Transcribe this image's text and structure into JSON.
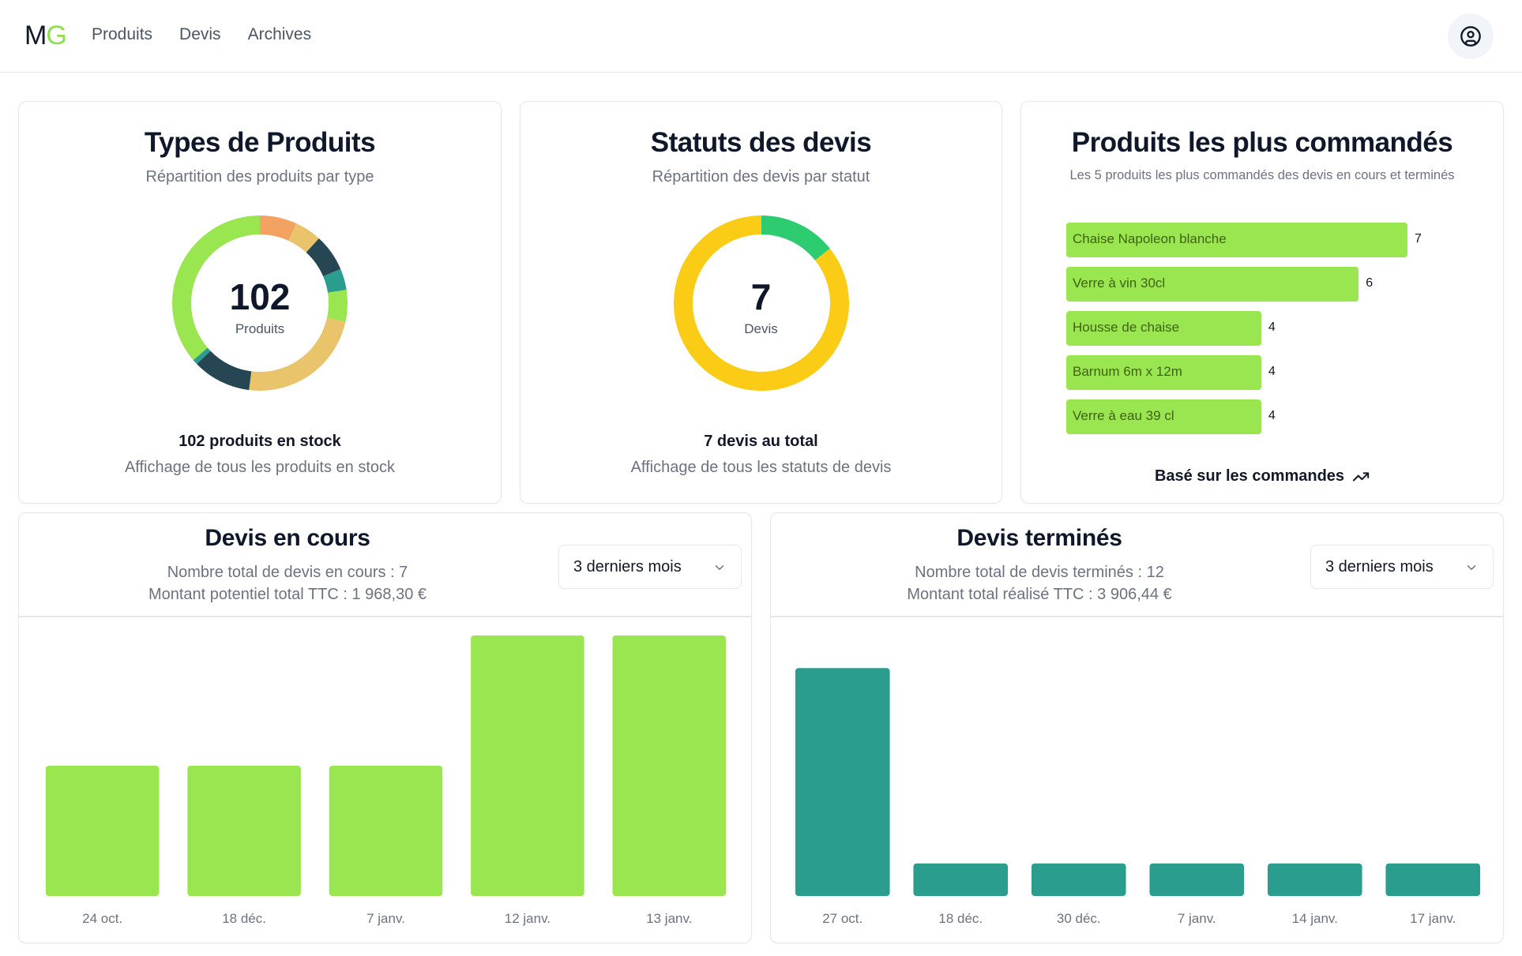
{
  "app": {
    "logo_m": "M",
    "logo_g": "G",
    "nav": [
      "Produits",
      "Devis",
      "Archives"
    ]
  },
  "colors": {
    "accent": "#9ae650",
    "teal": "#2a9d8f",
    "yellow": "#facc15",
    "green": "#2ecc71",
    "dark": "#264653",
    "sand": "#e9c46a",
    "orange": "#f4a261"
  },
  "icons": {
    "user": "user-circle-icon",
    "chevron": "chevron-down-icon",
    "trend": "trending-up-icon"
  },
  "types_produits": {
    "title": "Types de Produits",
    "subtitle": "Répartition des produits par type",
    "center_value": "102",
    "center_label": "Produits",
    "footer_main": "102 produits en stock",
    "footer_sub": "Affichage de tous les produits en stock",
    "chart_data": {
      "type": "pie",
      "total": 102,
      "slices": [
        {
          "value": 7,
          "color": "#f4a261"
        },
        {
          "value": 5,
          "color": "#e9c46a"
        },
        {
          "value": 7,
          "color": "#264653"
        },
        {
          "value": 4,
          "color": "#2a9d8f"
        },
        {
          "value": 6,
          "color": "#9ae650"
        },
        {
          "value": 24,
          "color": "#e9c46a"
        },
        {
          "value": 11,
          "color": "#264653"
        },
        {
          "value": 1,
          "color": "#2a9d8f"
        },
        {
          "value": 37,
          "color": "#9ae650"
        }
      ]
    }
  },
  "statuts_devis": {
    "title": "Statuts des devis",
    "subtitle": "Répartition des devis par statut",
    "center_value": "7",
    "center_label": "Devis",
    "footer_main": "7 devis au total",
    "footer_sub": "Affichage de tous les statuts de devis",
    "chart_data": {
      "type": "pie",
      "total": 7,
      "slices": [
        {
          "value": 1,
          "color": "#2ecc71"
        },
        {
          "value": 6,
          "color": "#facc15"
        }
      ]
    }
  },
  "plus_commandes": {
    "title": "Produits les plus commandés",
    "subtitle": "Les 5 produits les plus commandés des devis en cours et terminés",
    "footer": "Basé sur les commandes",
    "chart_data": {
      "type": "bar",
      "orientation": "horizontal",
      "categories": [
        "Chaise Napoleon blanche",
        "Verre à vin 30cl",
        "Housse de chaise",
        "Barnum 6m x 12m",
        "Verre à eau 39 cl"
      ],
      "values": [
        7,
        6,
        4,
        4,
        4
      ],
      "value_labels": [
        "7",
        "6",
        "4",
        "4",
        "4"
      ]
    }
  },
  "devis_en_cours": {
    "title": "Devis en cours",
    "line1": "Nombre total de devis en cours : 7",
    "line2": "Montant potentiel total TTC : 1 968,30 €",
    "period": "3 derniers mois",
    "chart_data": {
      "type": "bar",
      "categories": [
        "24 oct.",
        "18 déc.",
        "7 janv.",
        "12 janv.",
        "13 janv."
      ],
      "values": [
        1,
        1,
        1,
        2,
        2
      ],
      "ylim": [
        0,
        2
      ],
      "color": "#9ae650"
    }
  },
  "devis_termines": {
    "title": "Devis terminés",
    "line1": "Nombre total de devis terminés : 12",
    "line2": "Montant total réalisé TTC : 3 906,44 €",
    "period": "3 derniers mois",
    "chart_data": {
      "type": "bar",
      "categories": [
        "27 oct.",
        "18 déc.",
        "30 déc.",
        "7 janv.",
        "14 janv.",
        "17 janv."
      ],
      "values": [
        7,
        1,
        1,
        1,
        1,
        1
      ],
      "ylim": [
        0,
        8
      ],
      "color": "#2a9d8f"
    }
  }
}
